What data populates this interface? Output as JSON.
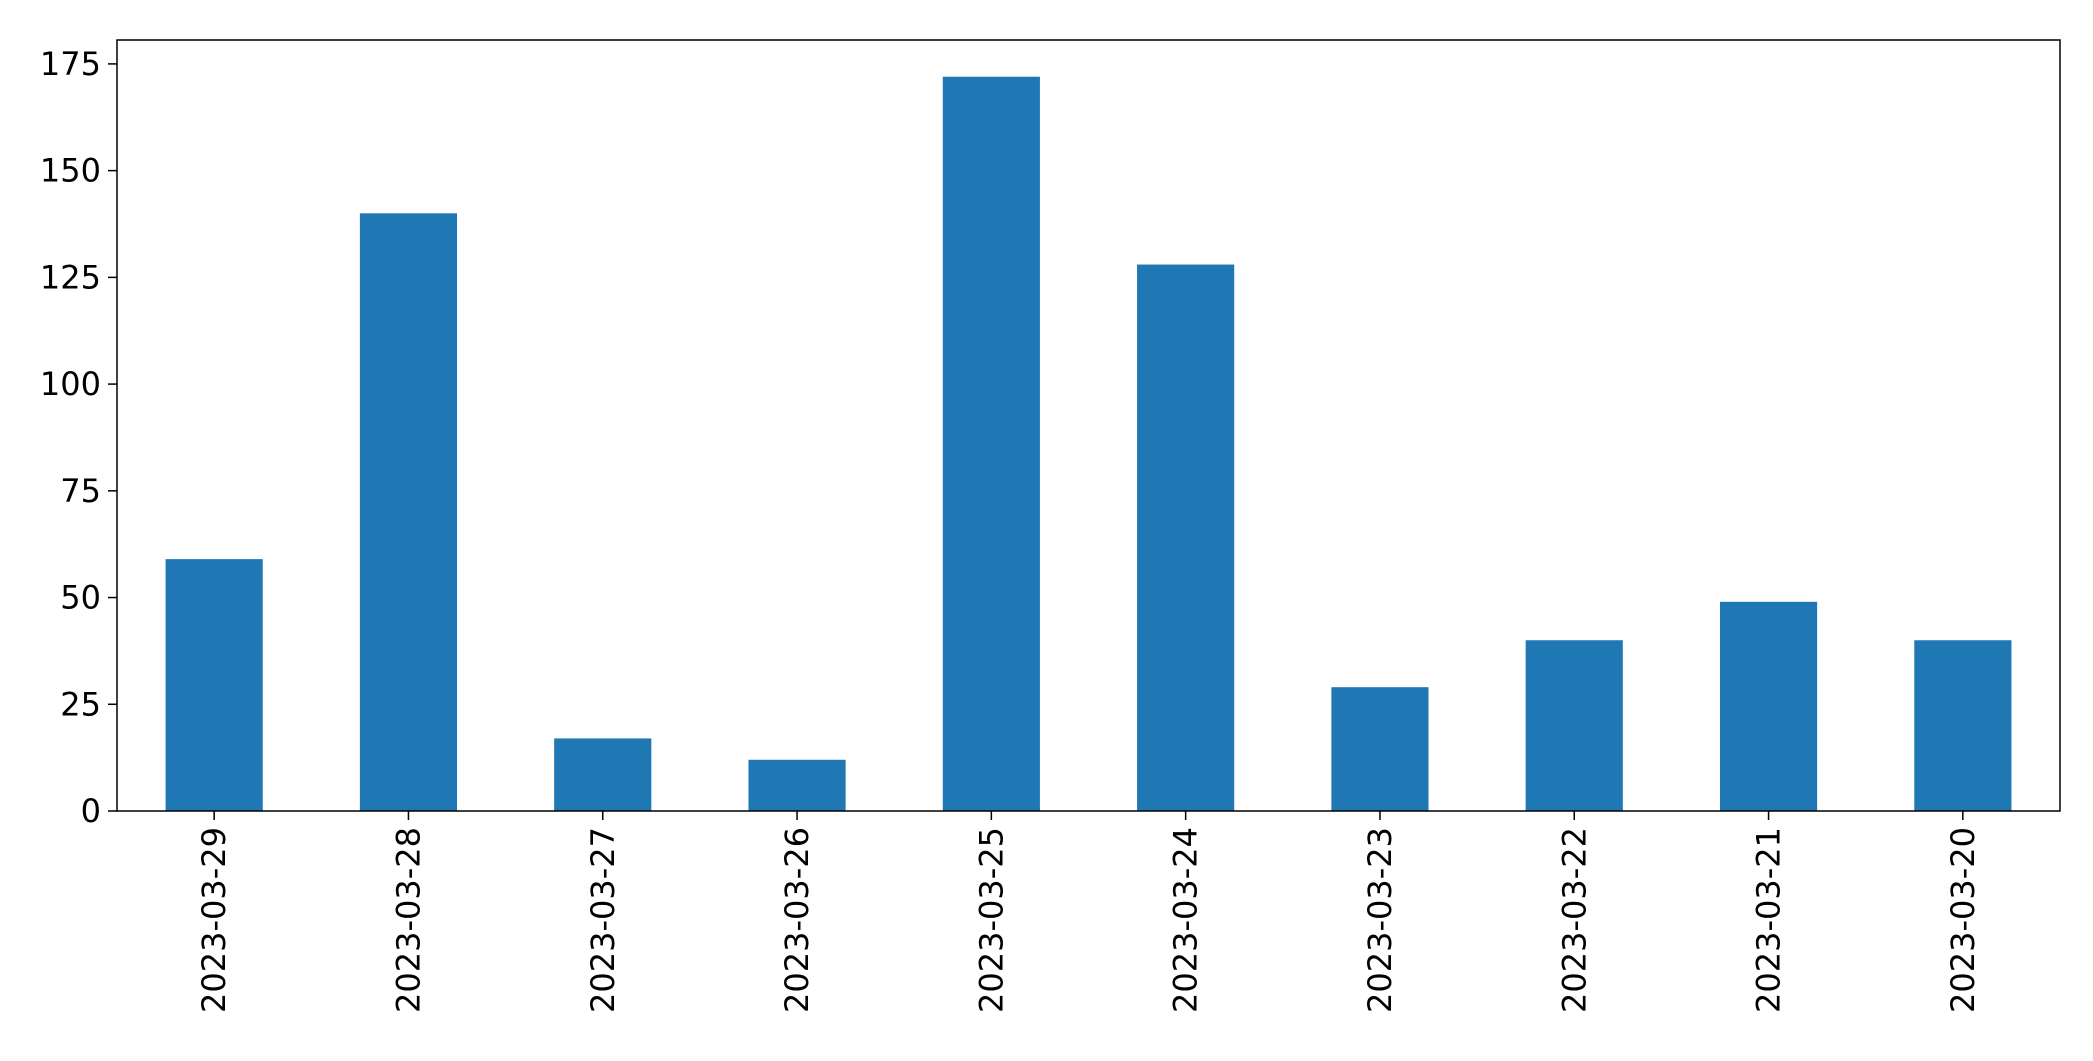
{
  "chart_data": {
    "type": "bar",
    "title": "",
    "xlabel": "",
    "ylabel": "",
    "categories": [
      "2023-03-29",
      "2023-03-28",
      "2023-03-27",
      "2023-03-26",
      "2023-03-25",
      "2023-03-24",
      "2023-03-23",
      "2023-03-22",
      "2023-03-21",
      "2023-03-20"
    ],
    "values": [
      59,
      140,
      17,
      12,
      172,
      128,
      29,
      40,
      49,
      40
    ],
    "ylim": [
      0,
      180.6
    ],
    "yticks": [
      "0",
      "25",
      "50",
      "75",
      "100",
      "125",
      "150",
      "175"
    ],
    "bar_color": "#1f77b4",
    "grid": false,
    "legend": "none"
  }
}
